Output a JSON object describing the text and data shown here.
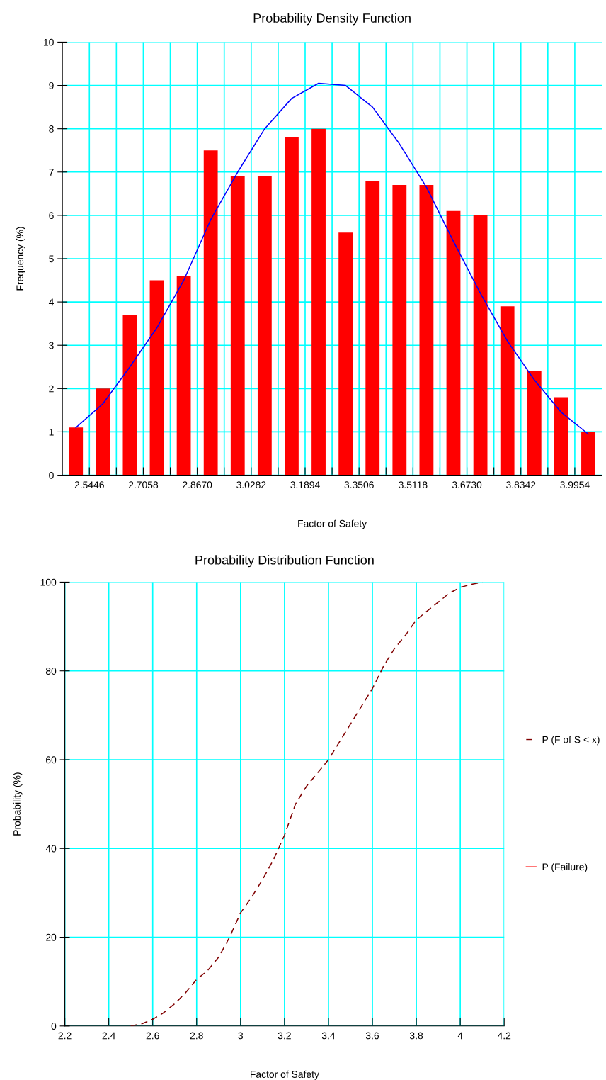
{
  "chart_data": [
    {
      "type": "histogram",
      "title": "Probability Density Function",
      "xlabel": "Factor of Safety",
      "ylabel": "Frequency (%)",
      "bins": [
        2.464,
        2.5446,
        2.6252,
        2.7058,
        2.7864,
        2.867,
        2.9476,
        3.0282,
        3.1088,
        3.1894,
        3.27,
        3.3506,
        3.4312,
        3.5118,
        3.5924,
        3.673,
        3.7536,
        3.8342,
        3.9148,
        3.9954,
        4.076
      ],
      "values": [
        1.1,
        2.0,
        3.7,
        4.5,
        4.6,
        7.5,
        6.9,
        6.9,
        7.8,
        8.0,
        5.6,
        6.8,
        6.7,
        6.7,
        6.1,
        6.0,
        3.9,
        2.4,
        1.8,
        1.0
      ],
      "color": "#ff0000",
      "series": [
        {
          "type": "line",
          "color": "#0000ff",
          "x": [
            2.5043,
            2.5849,
            2.6655,
            2.7461,
            2.8267,
            2.9073,
            2.9879,
            3.0685,
            3.1491,
            3.2297,
            3.3103,
            3.3909,
            3.4715,
            3.5521,
            3.6327,
            3.7133,
            3.7939,
            3.8745,
            3.9551,
            4.0357
          ],
          "values": [
            1.1,
            1.65,
            2.5,
            3.4,
            4.5,
            5.9,
            7.0,
            8.0,
            8.7,
            9.05,
            9.0,
            8.5,
            7.65,
            6.65,
            5.4,
            4.2,
            3.1,
            2.2,
            1.45,
            0.95
          ]
        }
      ],
      "xlim": [
        2.464,
        4.076
      ],
      "xticks": [
        2.5446,
        {
          "value": 2.6252,
          "label": null
        },
        2.7058,
        {
          "value": 2.7864,
          "label": null
        },
        {
          "value": 2.867,
          "label": "2.8670"
        },
        {
          "value": 2.9476,
          "label": null
        },
        3.0282,
        {
          "value": 3.1088,
          "label": null
        },
        3.1894,
        {
          "value": 3.27,
          "label": null
        },
        3.3506,
        {
          "value": 3.4312,
          "label": null
        },
        3.5118,
        {
          "value": 3.5924,
          "label": null
        },
        {
          "value": 3.673,
          "label": "3.6730"
        },
        {
          "value": 3.7536,
          "label": null
        },
        3.8342,
        {
          "value": 3.9148,
          "label": null
        },
        3.9954
      ],
      "ylim": [
        0,
        10
      ],
      "yticks": [
        0,
        1,
        2,
        3,
        4,
        5,
        6,
        7,
        8,
        9,
        10
      ],
      "grid": true,
      "marker": "none",
      "line_style": "solid"
    },
    {
      "type": "line",
      "title": "Probability Distribution Function",
      "xlabel": "Factor of Safety",
      "ylabel": "Probability (%)",
      "series": [
        {
          "name": "P (F of S < x)",
          "color": "#800000",
          "line_style": "dashed",
          "x": [
            2.5,
            2.55,
            2.6,
            2.65,
            2.7,
            2.75,
            2.8,
            2.85,
            2.9,
            2.95,
            3.0,
            3.05,
            3.1,
            3.15,
            3.2,
            3.25,
            3.3,
            3.35,
            3.4,
            3.45,
            3.5,
            3.55,
            3.6,
            3.65,
            3.7,
            3.75,
            3.8,
            3.85,
            3.9,
            3.95,
            4.0,
            4.05,
            4.1
          ],
          "values": [
            0,
            0.5,
            1.5,
            3,
            5,
            7.5,
            10.5,
            12.5,
            15.5,
            20,
            25.5,
            29,
            33,
            37.5,
            43,
            50,
            54,
            57,
            60,
            64,
            68,
            72,
            76,
            81,
            85,
            88,
            91.5,
            93.5,
            95.5,
            97.5,
            98.8,
            99.5,
            100
          ]
        },
        {
          "name": "P (Failure)",
          "color": "#ff0000",
          "line_style": "solid"
        }
      ],
      "xlim": [
        2.2,
        4.2
      ],
      "xticks": [
        2.2,
        2.4,
        2.6,
        2.8,
        3,
        3.2,
        3.4,
        3.6,
        3.8,
        4,
        4.2
      ],
      "ylim": [
        0,
        100
      ],
      "yticks": [
        0,
        20,
        40,
        60,
        80,
        100
      ],
      "grid": true,
      "legend": "right",
      "marker": "none"
    }
  ]
}
